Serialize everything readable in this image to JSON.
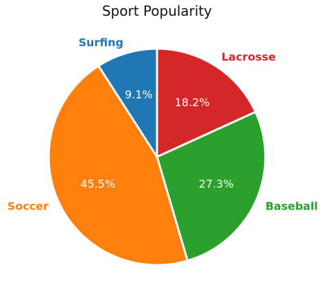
{
  "chart_data": {
    "type": "pie",
    "title": "Sport Popularity",
    "start_angle_deg": 90,
    "direction": "clockwise",
    "slices": [
      {
        "label": "Lacrosse",
        "value": 18.2,
        "pct_text": "18.2%",
        "color": "#d62728"
      },
      {
        "label": "Baseball",
        "value": 27.3,
        "pct_text": "27.3%",
        "color": "#2ca02c"
      },
      {
        "label": "Soccer",
        "value": 45.5,
        "pct_text": "45.5%",
        "color": "#ff7f0e"
      },
      {
        "label": "Surfing",
        "value": 9.1,
        "pct_text": "9.1%",
        "color": "#1f77b4"
      }
    ]
  }
}
